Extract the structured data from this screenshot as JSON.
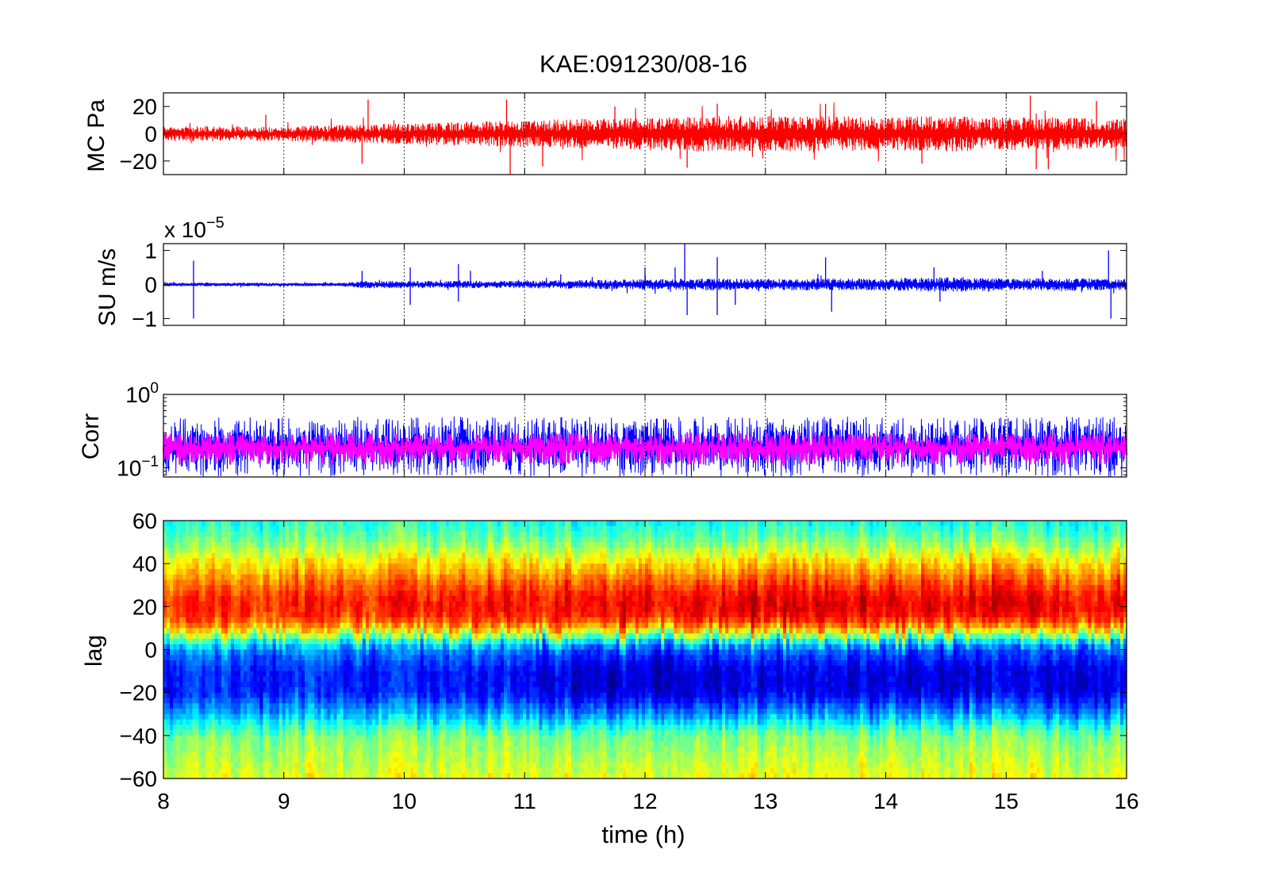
{
  "chart_data": [
    {
      "type": "line",
      "title": "KAE:091230/08-16",
      "ylabel": "MC Pa",
      "xlim": [
        8,
        16
      ],
      "ylim": [
        -30,
        30
      ],
      "yticks": [
        {
          "value": -20,
          "label": "−20"
        },
        {
          "value": 0,
          "label": "0"
        },
        {
          "value": 20,
          "label": "20"
        }
      ],
      "series": [
        {
          "color": "#ff0000",
          "envelope": {
            "x": [
              8.0,
              8.5,
              9.0,
              9.5,
              10.0,
              10.5,
              11.0,
              11.5,
              12.0,
              12.5,
              13.0,
              13.5,
              14.0,
              14.5,
              15.0,
              15.5,
              16.0
            ],
            "amplitude": [
              5,
              5,
              5,
              6,
              7,
              8,
              9,
              10,
              11,
              12,
              12,
              12,
              11,
              12,
              11,
              11,
              10
            ]
          },
          "spikes": [
            {
              "x": 8.85,
              "y": 14
            },
            {
              "x": 9.7,
              "y": 25
            },
            {
              "x": 9.65,
              "y": -22
            },
            {
              "x": 10.85,
              "y": 25
            },
            {
              "x": 10.88,
              "y": -30
            },
            {
              "x": 11.15,
              "y": -24
            },
            {
              "x": 11.75,
              "y": 20
            },
            {
              "x": 12.35,
              "y": -25
            },
            {
              "x": 12.6,
              "y": 22
            },
            {
              "x": 13.5,
              "y": 22
            },
            {
              "x": 14.3,
              "y": -22
            },
            {
              "x": 15.2,
              "y": 28
            },
            {
              "x": 15.25,
              "y": -26
            },
            {
              "x": 15.35,
              "y": -26
            },
            {
              "x": 15.75,
              "y": 24
            }
          ]
        }
      ]
    },
    {
      "type": "line",
      "ylabel": "SU m/s",
      "exponent_label": "x 10",
      "exponent": "−5",
      "xlim": [
        8,
        16
      ],
      "ylim": [
        -1.2,
        1.2
      ],
      "yticks": [
        {
          "value": -1,
          "label": "−1"
        },
        {
          "value": 0,
          "label": "0"
        },
        {
          "value": 1,
          "label": "1"
        }
      ],
      "series": [
        {
          "color": "#0000ff",
          "envelope": {
            "x": [
              8.0,
              8.5,
              9.0,
              9.5,
              9.65,
              10.0,
              10.5,
              11.0,
              11.5,
              12.0,
              12.5,
              13.0,
              13.5,
              14.0,
              14.5,
              15.0,
              15.5,
              16.0
            ],
            "amplitude": [
              0.05,
              0.05,
              0.04,
              0.05,
              0.1,
              0.1,
              0.1,
              0.1,
              0.12,
              0.14,
              0.16,
              0.15,
              0.16,
              0.16,
              0.2,
              0.16,
              0.18,
              0.15
            ]
          },
          "spikes": [
            {
              "x": 8.25,
              "y": 0.7
            },
            {
              "x": 8.25,
              "y": -1.0
            },
            {
              "x": 9.65,
              "y": 0.4
            },
            {
              "x": 10.05,
              "y": 0.5
            },
            {
              "x": 10.05,
              "y": -0.6
            },
            {
              "x": 10.45,
              "y": 0.6
            },
            {
              "x": 10.45,
              "y": -0.5
            },
            {
              "x": 10.55,
              "y": 0.4
            },
            {
              "x": 11.3,
              "y": 0.3
            },
            {
              "x": 12.0,
              "y": 0.5
            },
            {
              "x": 12.25,
              "y": 0.5
            },
            {
              "x": 12.33,
              "y": 1.2
            },
            {
              "x": 12.35,
              "y": -0.9
            },
            {
              "x": 12.6,
              "y": 0.8
            },
            {
              "x": 12.6,
              "y": -0.9
            },
            {
              "x": 12.75,
              "y": -0.6
            },
            {
              "x": 13.5,
              "y": 0.8
            },
            {
              "x": 13.55,
              "y": -0.8
            },
            {
              "x": 14.4,
              "y": 0.5
            },
            {
              "x": 14.45,
              "y": -0.5
            },
            {
              "x": 15.3,
              "y": 0.4
            },
            {
              "x": 15.85,
              "y": 1.0
            },
            {
              "x": 15.87,
              "y": -1.0
            }
          ]
        }
      ]
    },
    {
      "type": "line",
      "ylabel": "Corr",
      "yscale": "log",
      "xlim": [
        8,
        16
      ],
      "ylim": [
        0.075,
        1.0
      ],
      "yticks": [
        {
          "value": 1.0,
          "base": "10",
          "exp": "0"
        },
        {
          "value": 0.1,
          "base": "10",
          "exp": "−1"
        }
      ],
      "series": [
        {
          "color": "#0000ff",
          "median": 0.2,
          "low": 0.075,
          "high": 0.5
        },
        {
          "color": "#ff00ff",
          "median": 0.19,
          "low": 0.11,
          "high": 0.3
        }
      ]
    },
    {
      "type": "heatmap",
      "ylabel": "lag",
      "xlabel": "time (h)",
      "xlim": [
        8,
        16
      ],
      "ylim": [
        -60,
        60
      ],
      "xticks": [
        8,
        9,
        10,
        11,
        12,
        13,
        14,
        15,
        16
      ],
      "yticks": [
        {
          "value": -60,
          "label": "−60"
        },
        {
          "value": -40,
          "label": "−40"
        },
        {
          "value": -20,
          "label": "−20"
        },
        {
          "value": 0,
          "label": "0"
        },
        {
          "value": 20,
          "label": "20"
        },
        {
          "value": 40,
          "label": "40"
        },
        {
          "value": 60,
          "label": "60"
        }
      ],
      "colormap": "jet",
      "lag_profile": {
        "lag": [
          -60,
          -50,
          -40,
          -30,
          -20,
          -10,
          0,
          5,
          10,
          15,
          20,
          25,
          30,
          40,
          50,
          60
        ],
        "level": [
          0.6,
          0.55,
          0.5,
          0.3,
          0.15,
          0.15,
          0.25,
          0.45,
          0.7,
          0.82,
          0.85,
          0.83,
          0.78,
          0.65,
          0.5,
          0.4
        ]
      },
      "time_intensity": {
        "x": [
          8,
          9,
          10,
          11,
          11.5,
          12,
          13,
          14,
          15,
          16
        ],
        "value": [
          0.6,
          0.6,
          0.7,
          0.8,
          1.0,
          1.0,
          1.0,
          1.0,
          1.0,
          0.9
        ]
      }
    }
  ]
}
